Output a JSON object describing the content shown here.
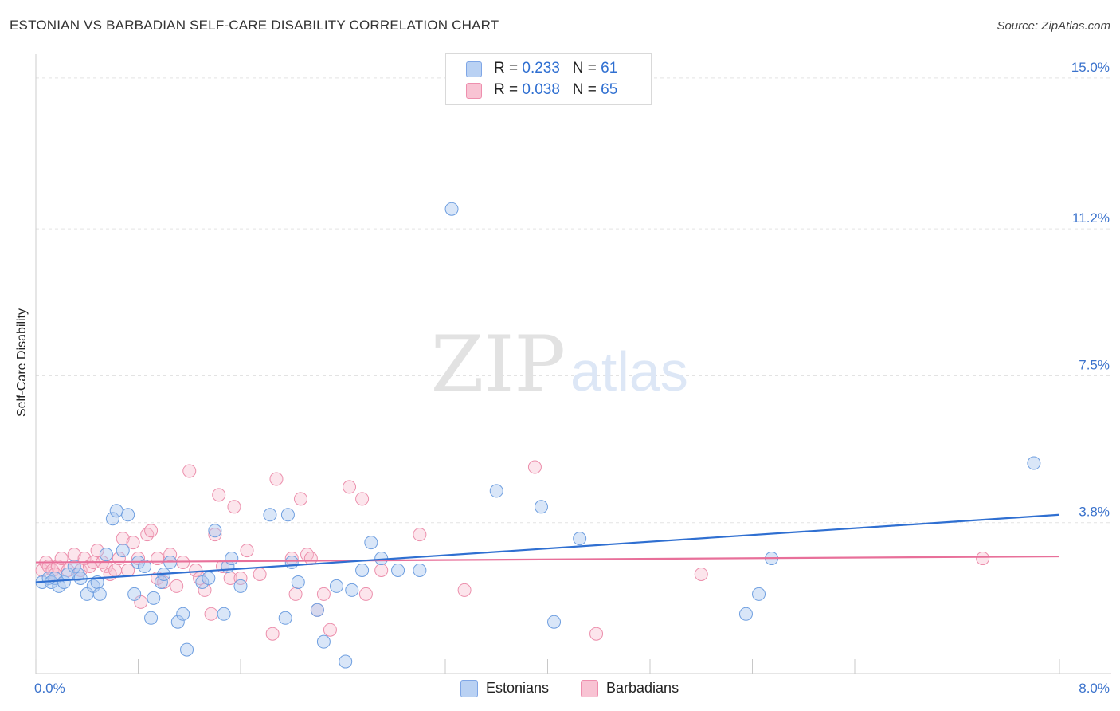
{
  "title": "ESTONIAN VS BARBADIAN SELF-CARE DISABILITY CORRELATION CHART",
  "source": "Source: ZipAtlas.com",
  "watermark": {
    "zip": "ZIP",
    "atlas": "atlas"
  },
  "legend": {
    "estonians": {
      "r_label": "R =",
      "r_value": "0.233",
      "n_label": "N =",
      "n_value": "61",
      "swatch_fill": "#b9d1f3",
      "swatch_stroke": "#7fa6e6"
    },
    "barbadians": {
      "r_label": "R =",
      "r_value": "0.038",
      "n_label": "N =",
      "n_value": "65",
      "swatch_fill": "#f8c3d3",
      "swatch_stroke": "#ee8fae"
    }
  },
  "bottom_legend": {
    "estonians": "Estonians",
    "barbadians": "Barbadians"
  },
  "colors": {
    "estonian_point_fill": "rgba(170,200,240,0.45)",
    "estonian_point_stroke": "#6f9fe0",
    "barbadian_point_fill": "rgba(248,190,208,0.40)",
    "barbadian_point_stroke": "#ec8fac",
    "estonian_trend": "#2f6fd1",
    "barbadian_trend": "#e8709a",
    "tick_label": "#3a72cc",
    "grid": "#e3e3e3"
  },
  "chart_data": {
    "type": "scatter",
    "title": "ESTONIAN VS BARBADIAN SELF-CARE DISABILITY CORRELATION CHART",
    "xlabel": "",
    "ylabel": "Self-Care Disability",
    "xlim": [
      0,
      8
    ],
    "ylim": [
      0,
      15.6
    ],
    "x_tick_labels": [
      {
        "value": 0,
        "label": "0.0%"
      },
      {
        "value": 8,
        "label": "8.0%"
      }
    ],
    "y_ticks": [
      {
        "value": 3.8,
        "label": "3.8%"
      },
      {
        "value": 7.5,
        "label": "7.5%"
      },
      {
        "value": 11.2,
        "label": "11.2%"
      },
      {
        "value": 15.0,
        "label": "15.0%"
      }
    ],
    "grid": true,
    "legend_position": "top-center",
    "series": [
      {
        "name": "Estonians",
        "r": 0.233,
        "n": 61,
        "trend": {
          "x": [
            0,
            8
          ],
          "y": [
            2.3,
            4.0
          ]
        },
        "points": [
          [
            0.05,
            2.3
          ],
          [
            0.1,
            2.4
          ],
          [
            0.12,
            2.3
          ],
          [
            0.15,
            2.4
          ],
          [
            0.18,
            2.2
          ],
          [
            0.22,
            2.3
          ],
          [
            0.25,
            2.5
          ],
          [
            0.3,
            2.7
          ],
          [
            0.33,
            2.5
          ],
          [
            0.35,
            2.4
          ],
          [
            0.4,
            2.0
          ],
          [
            0.45,
            2.2
          ],
          [
            0.48,
            2.3
          ],
          [
            0.5,
            2.0
          ],
          [
            0.55,
            3.0
          ],
          [
            0.6,
            3.9
          ],
          [
            0.63,
            4.1
          ],
          [
            0.68,
            3.1
          ],
          [
            0.72,
            4.0
          ],
          [
            0.77,
            2.0
          ],
          [
            0.8,
            2.8
          ],
          [
            0.85,
            2.7
          ],
          [
            0.9,
            1.4
          ],
          [
            0.92,
            1.9
          ],
          [
            0.98,
            2.3
          ],
          [
            1.0,
            2.5
          ],
          [
            1.05,
            2.8
          ],
          [
            1.11,
            1.3
          ],
          [
            1.15,
            1.5
          ],
          [
            1.18,
            0.6
          ],
          [
            1.3,
            2.3
          ],
          [
            1.35,
            2.4
          ],
          [
            1.4,
            3.6
          ],
          [
            1.47,
            1.5
          ],
          [
            1.5,
            2.7
          ],
          [
            1.53,
            2.9
          ],
          [
            1.6,
            2.2
          ],
          [
            1.83,
            4.0
          ],
          [
            1.95,
            1.4
          ],
          [
            1.97,
            4.0
          ],
          [
            2.0,
            2.8
          ],
          [
            2.05,
            2.3
          ],
          [
            2.2,
            1.6
          ],
          [
            2.25,
            0.8
          ],
          [
            2.35,
            2.2
          ],
          [
            2.42,
            0.3
          ],
          [
            2.47,
            2.1
          ],
          [
            2.55,
            2.6
          ],
          [
            2.62,
            3.3
          ],
          [
            2.7,
            2.9
          ],
          [
            2.83,
            2.6
          ],
          [
            3.0,
            2.6
          ],
          [
            3.25,
            11.7
          ],
          [
            3.6,
            4.6
          ],
          [
            3.95,
            4.2
          ],
          [
            4.05,
            1.3
          ],
          [
            4.25,
            3.4
          ],
          [
            5.55,
            1.5
          ],
          [
            5.65,
            2.0
          ],
          [
            5.75,
            2.9
          ],
          [
            7.8,
            5.3
          ]
        ]
      },
      {
        "name": "Barbadians",
        "r": 0.038,
        "n": 65,
        "trend": {
          "x": [
            0,
            8
          ],
          "y": [
            2.8,
            2.95
          ]
        },
        "points": [
          [
            0.05,
            2.6
          ],
          [
            0.08,
            2.8
          ],
          [
            0.1,
            2.7
          ],
          [
            0.13,
            2.6
          ],
          [
            0.17,
            2.7
          ],
          [
            0.2,
            2.9
          ],
          [
            0.25,
            2.6
          ],
          [
            0.3,
            3.0
          ],
          [
            0.35,
            2.6
          ],
          [
            0.38,
            2.9
          ],
          [
            0.42,
            2.7
          ],
          [
            0.45,
            2.8
          ],
          [
            0.48,
            3.1
          ],
          [
            0.52,
            2.8
          ],
          [
            0.55,
            2.7
          ],
          [
            0.58,
            2.5
          ],
          [
            0.62,
            2.6
          ],
          [
            0.65,
            2.9
          ],
          [
            0.68,
            3.4
          ],
          [
            0.72,
            2.6
          ],
          [
            0.76,
            3.3
          ],
          [
            0.8,
            2.9
          ],
          [
            0.82,
            1.8
          ],
          [
            0.87,
            3.5
          ],
          [
            0.9,
            3.6
          ],
          [
            0.95,
            2.4
          ],
          [
            1.0,
            2.3
          ],
          [
            1.05,
            3.0
          ],
          [
            1.1,
            2.2
          ],
          [
            1.15,
            2.8
          ],
          [
            1.2,
            5.1
          ],
          [
            1.25,
            2.6
          ],
          [
            1.28,
            2.4
          ],
          [
            1.32,
            2.1
          ],
          [
            1.37,
            1.5
          ],
          [
            1.4,
            3.5
          ],
          [
            1.43,
            4.5
          ],
          [
            1.46,
            2.7
          ],
          [
            1.52,
            2.4
          ],
          [
            1.55,
            4.2
          ],
          [
            1.6,
            2.4
          ],
          [
            1.65,
            3.1
          ],
          [
            1.85,
            1.0
          ],
          [
            1.88,
            4.9
          ],
          [
            2.0,
            2.9
          ],
          [
            2.03,
            2.0
          ],
          [
            2.07,
            4.4
          ],
          [
            2.12,
            3.0
          ],
          [
            2.15,
            2.9
          ],
          [
            2.2,
            1.6
          ],
          [
            2.25,
            2.0
          ],
          [
            2.3,
            1.1
          ],
          [
            2.45,
            4.7
          ],
          [
            2.55,
            4.4
          ],
          [
            2.58,
            2.0
          ],
          [
            2.7,
            2.6
          ],
          [
            3.0,
            3.5
          ],
          [
            3.35,
            2.1
          ],
          [
            3.9,
            5.2
          ],
          [
            4.38,
            1.0
          ],
          [
            5.2,
            2.5
          ],
          [
            7.4,
            2.9
          ],
          [
            0.15,
            2.5
          ],
          [
            0.95,
            2.9
          ],
          [
            1.75,
            2.5
          ]
        ]
      }
    ]
  }
}
